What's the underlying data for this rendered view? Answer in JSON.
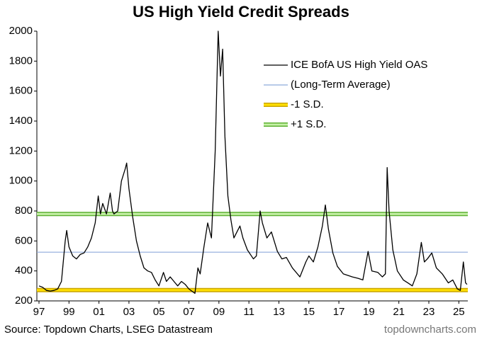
{
  "chart_data": {
    "type": "line",
    "title": "US High Yield Credit Spreads",
    "source": "Source: Topdown Charts, LSEG Datastream",
    "watermark": "topdowncharts.com",
    "x": [
      1997.0,
      1997.25,
      1997.5,
      1997.75,
      1998.0,
      1998.25,
      1998.5,
      1998.75,
      1998.85,
      1999.0,
      1999.25,
      1999.5,
      1999.75,
      2000.0,
      2000.25,
      2000.5,
      2000.75,
      2000.95,
      2001.1,
      2001.25,
      2001.5,
      2001.75,
      2001.9,
      2002.0,
      2002.25,
      2002.5,
      2002.75,
      2002.85,
      2003.0,
      2003.25,
      2003.5,
      2003.75,
      2004.0,
      2004.25,
      2004.5,
      2004.75,
      2005.0,
      2005.3,
      2005.5,
      2005.75,
      2006.0,
      2006.25,
      2006.5,
      2006.75,
      2007.0,
      2007.4,
      2007.6,
      2007.75,
      2008.0,
      2008.25,
      2008.5,
      2008.75,
      2008.95,
      2009.1,
      2009.25,
      2009.4,
      2009.6,
      2009.8,
      2010.0,
      2010.4,
      2010.6,
      2010.9,
      2011.3,
      2011.5,
      2011.75,
      2011.9,
      2012.2,
      2012.5,
      2012.9,
      2013.2,
      2013.5,
      2013.9,
      2014.4,
      2014.8,
      2015.0,
      2015.3,
      2015.6,
      2015.9,
      2016.1,
      2016.3,
      2016.6,
      2016.9,
      2017.3,
      2017.6,
      2017.9,
      2018.3,
      2018.6,
      2018.95,
      2019.2,
      2019.6,
      2019.9,
      2020.1,
      2020.22,
      2020.35,
      2020.6,
      2020.9,
      2021.3,
      2021.6,
      2021.9,
      2022.2,
      2022.5,
      2022.7,
      2022.9,
      2023.2,
      2023.5,
      2023.9,
      2024.3,
      2024.6,
      2024.9,
      2025.1,
      2025.3,
      2025.45,
      2025.55
    ],
    "series": [
      {
        "name": "ICE BofA US High Yield OAS",
        "color": "#000000",
        "values": [
          300,
          290,
          270,
          265,
          270,
          280,
          330,
          600,
          670,
          560,
          500,
          480,
          510,
          520,
          560,
          620,
          720,
          900,
          780,
          850,
          780,
          920,
          800,
          780,
          800,
          1000,
          1080,
          1120,
          950,
          760,
          600,
          500,
          420,
          400,
          390,
          340,
          300,
          390,
          330,
          360,
          330,
          300,
          330,
          310,
          280,
          250,
          420,
          380,
          560,
          720,
          620,
          1200,
          2000,
          1700,
          1880,
          1300,
          900,
          740,
          620,
          700,
          620,
          540,
          480,
          500,
          800,
          720,
          620,
          660,
          530,
          480,
          490,
          420,
          360,
          460,
          500,
          460,
          560,
          700,
          840,
          680,
          520,
          430,
          380,
          370,
          360,
          350,
          340,
          530,
          400,
          390,
          360,
          380,
          1090,
          800,
          540,
          400,
          340,
          320,
          300,
          380,
          590,
          460,
          480,
          520,
          420,
          380,
          320,
          340,
          280,
          270,
          460,
          320,
          310
        ]
      }
    ],
    "reference_lines": [
      {
        "name": "(Long-Term Average)",
        "value": 525,
        "color": "#8eaadb"
      },
      {
        "name": "-1 S.D.",
        "value": 272,
        "color": "#ffe000",
        "edge": "#c9a400"
      },
      {
        "name": "+1 S.D.",
        "value": 780,
        "color": "#c6f0a8",
        "edge": "#5cb030"
      }
    ],
    "xlim": [
      1997,
      2025.6
    ],
    "xticks": [
      {
        "value": 1997,
        "label": "97"
      },
      {
        "value": 1999,
        "label": "99"
      },
      {
        "value": 2001,
        "label": "01"
      },
      {
        "value": 2003,
        "label": "03"
      },
      {
        "value": 2005,
        "label": "05"
      },
      {
        "value": 2007,
        "label": "07"
      },
      {
        "value": 2009,
        "label": "09"
      },
      {
        "value": 2011,
        "label": "11"
      },
      {
        "value": 2013,
        "label": "13"
      },
      {
        "value": 2015,
        "label": "15"
      },
      {
        "value": 2017,
        "label": "17"
      },
      {
        "value": 2019,
        "label": "19"
      },
      {
        "value": 2021,
        "label": "21"
      },
      {
        "value": 2023,
        "label": "23"
      },
      {
        "value": 2025,
        "label": "25"
      }
    ],
    "ylim": [
      200,
      2000
    ],
    "yticks": [
      200,
      400,
      600,
      800,
      1000,
      1200,
      1400,
      1600,
      1800,
      2000
    ],
    "grid": false
  }
}
